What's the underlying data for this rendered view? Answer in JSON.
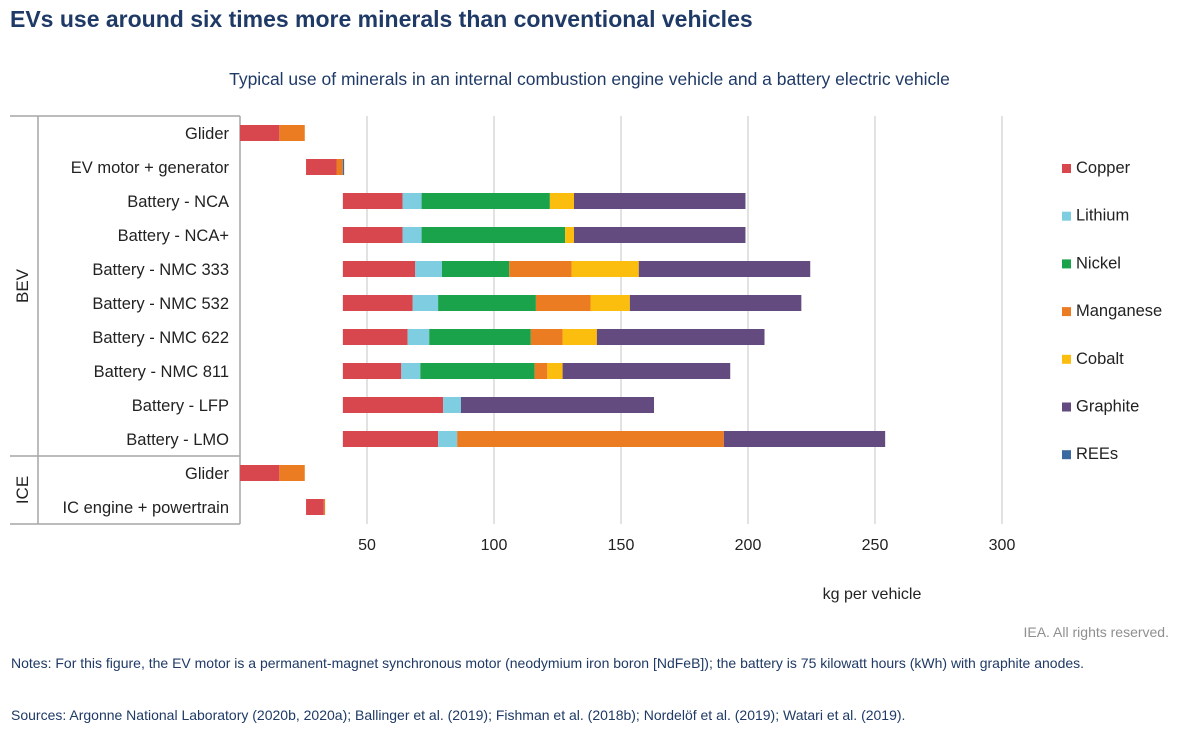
{
  "header": {
    "title": "EVs use around six times more minerals than conventional vehicles"
  },
  "footer": {
    "attribution": "IEA. All rights reserved.",
    "notes": "Notes: For this figure, the EV motor is a permanent-magnet synchronous motor (neodymium iron boron [NdFeB]); the battery is 75 kilowatt hours (kWh) with graphite anodes.",
    "sources": "Sources: Argonne National Laboratory (2020b, 2020a); Ballinger et al. (2019); Fishman et al. (2018b); Nordelöf et al. (2019); Watari et al. (2019)."
  },
  "chart_data": {
    "type": "bar",
    "orientation": "horizontal",
    "stacked": true,
    "title": "Typical use of minerals in an internal combustion engine vehicle and a battery electric vehicle",
    "xlabel": "kg per vehicle",
    "ylabel": "",
    "xlim": [
      0,
      340
    ],
    "xticks": [
      50,
      100,
      150,
      200,
      250,
      300
    ],
    "grid": "vertical",
    "legend_position": "right",
    "groups": [
      {
        "label": "BEV",
        "categories": [
          "Glider",
          "EV motor + generator",
          "Battery - NCA",
          "Battery - NCA+",
          "Battery - NMC 333",
          "Battery - NMC 532",
          "Battery - NMC 622",
          "Battery - NMC 811",
          "Battery - LFP",
          "Battery - LMO"
        ]
      },
      {
        "label": "ICE",
        "categories": [
          "Glider",
          "IC engine + powertrain"
        ]
      }
    ],
    "categories": [
      "Glider",
      "EV motor + generator",
      "Battery - NCA",
      "Battery - NCA+",
      "Battery - NMC 333",
      "Battery - NMC 532",
      "Battery - NMC 622",
      "Battery - NMC 811",
      "Battery - LFP",
      "Battery - LMO",
      "Glider",
      "IC engine + powertrain"
    ],
    "base": [
      0,
      26,
      40.5,
      40.5,
      40.5,
      40.5,
      40.5,
      40.5,
      40.5,
      40.5,
      0,
      26
    ],
    "series": [
      {
        "name": "Copper",
        "color": "#d9474e",
        "values": [
          15.5,
          12,
          23.5,
          23.5,
          28.5,
          27.5,
          25.5,
          23,
          39.5,
          37.5,
          15.5,
          7
        ]
      },
      {
        "name": "Lithium",
        "color": "#7fcde1",
        "values": [
          0,
          0,
          7.5,
          7.5,
          10.5,
          10,
          8.5,
          7.5,
          7,
          7.5,
          0,
          0
        ]
      },
      {
        "name": "Nickel",
        "color": "#1aa34a",
        "values": [
          0,
          0,
          50.5,
          56.5,
          26.5,
          38.5,
          40,
          45,
          0,
          0,
          0,
          0
        ]
      },
      {
        "name": "Manganese",
        "color": "#ec7c22",
        "values": [
          10,
          2.5,
          0,
          0,
          24.5,
          21.5,
          12.5,
          5,
          0,
          105,
          10,
          0.5
        ]
      },
      {
        "name": "Cobalt",
        "color": "#fbbe0f",
        "values": [
          0,
          0,
          9.5,
          3.5,
          26.5,
          15.5,
          13.5,
          6,
          0,
          0,
          0,
          0
        ]
      },
      {
        "name": "Graphite",
        "color": "#634a7f",
        "values": [
          0,
          0,
          67.5,
          67.5,
          67.5,
          67.5,
          66,
          66,
          76,
          63.5,
          0,
          0
        ]
      },
      {
        "name": "REEs",
        "color": "#3b6aa0",
        "values": [
          0,
          0.5,
          0,
          0,
          0,
          0,
          0,
          0,
          0,
          0,
          0,
          0
        ]
      }
    ]
  }
}
